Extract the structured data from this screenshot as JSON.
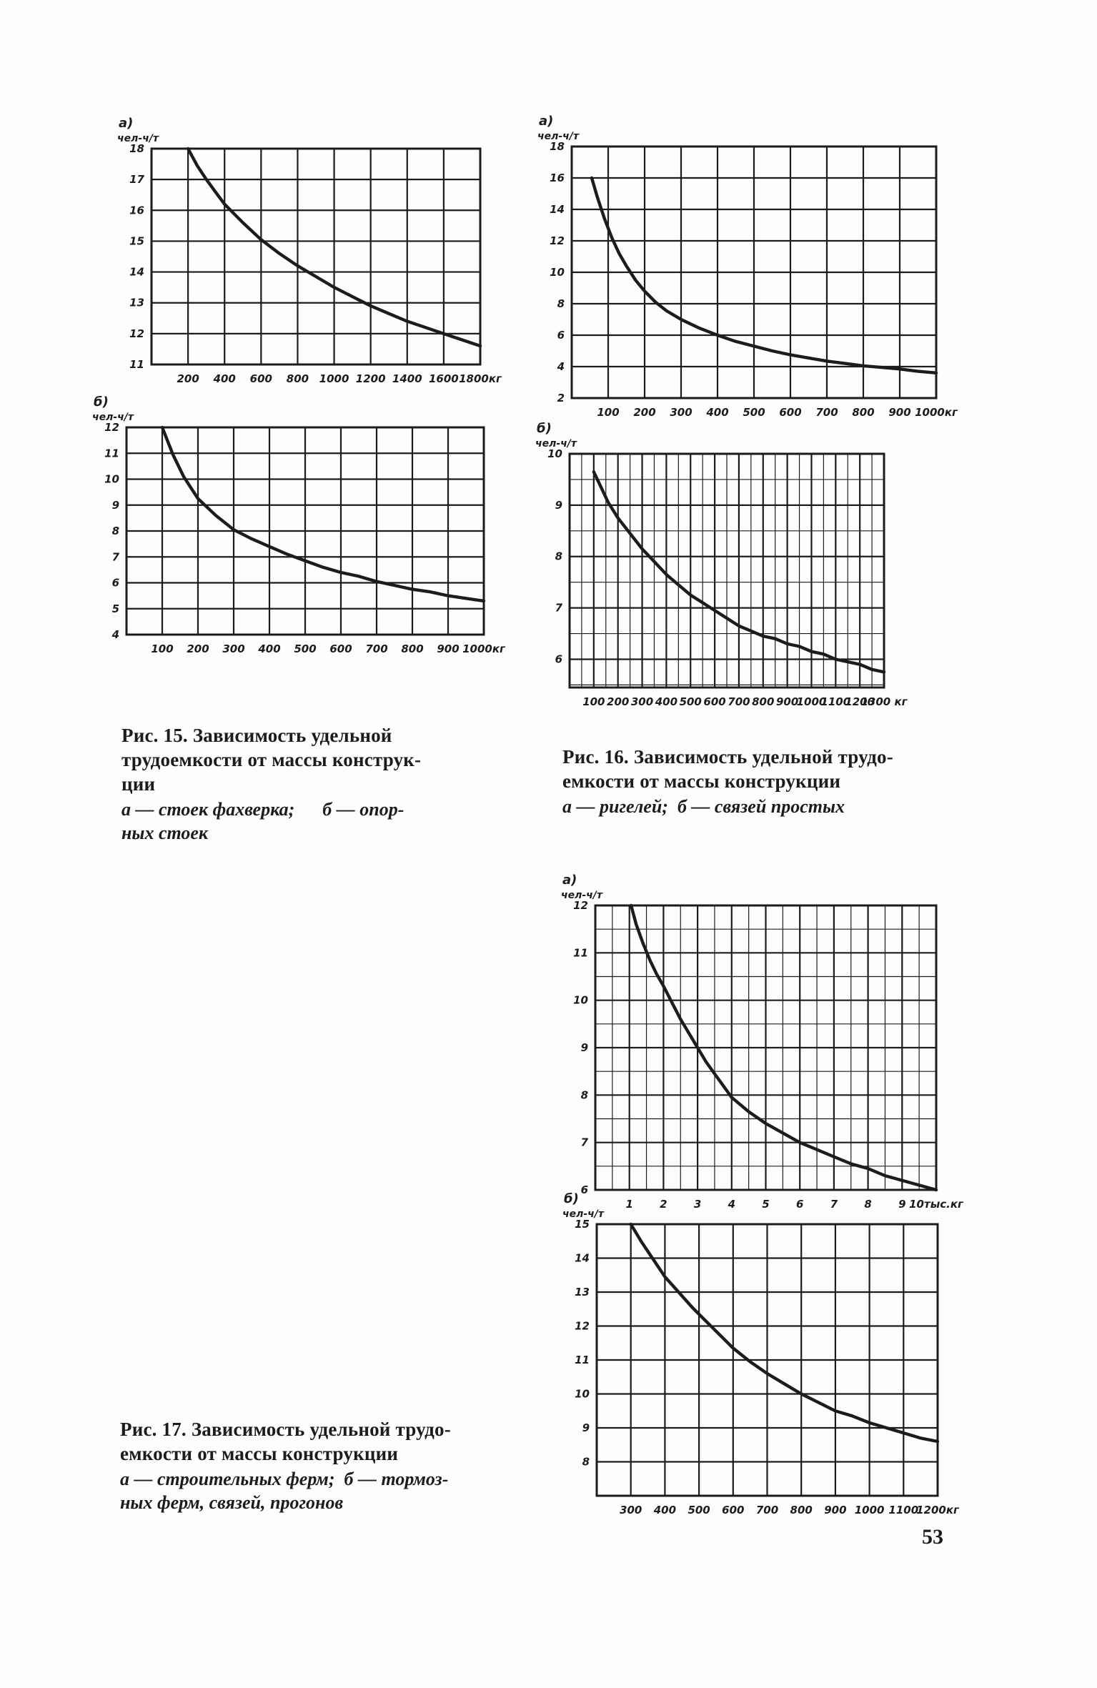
{
  "page": {
    "number": "53",
    "ink_color": "#1c1c1c",
    "background_color": "#fdfdfb"
  },
  "figures": [
    {
      "id": "fig15",
      "caption_title": "Рис. 15. Зависимость удельной\nтрудоемкости от массы конструк-\nции",
      "caption_sub": "а — стоек фахверка;      б — опор-\nных стоек"
    },
    {
      "id": "fig16",
      "caption_title": "Рис. 16. Зависимость удельной трудо-\nемкости от массы конструкции",
      "caption_sub": "а — ригелей;  б — связей простых"
    },
    {
      "id": "fig17",
      "caption_title": "Рис. 17. Зависимость удельной трудо-\nемкости от массы конструкции",
      "caption_sub": "а — строительных ферм;  б — тормоз-\nных ферм, связей, прогонов"
    }
  ],
  "chart_data": [
    {
      "id": "fig15a",
      "figure": "Рис. 15",
      "part": "а)",
      "type": "line",
      "ylabel": "чел-ч/т",
      "x_unit": "кг",
      "x_range": [
        0,
        1800
      ],
      "y_range": [
        11,
        18
      ],
      "x_minor_step": null,
      "y_minor_step": null,
      "x_ticks": [
        [
          200,
          "200"
        ],
        [
          400,
          "400"
        ],
        [
          600,
          "600"
        ],
        [
          800,
          "800"
        ],
        [
          1000,
          "1000"
        ],
        [
          1200,
          "1200"
        ],
        [
          1400,
          "1400"
        ],
        [
          1600,
          "1600"
        ],
        [
          1800,
          "1800кг"
        ]
      ],
      "y_ticks": [
        [
          11,
          "11"
        ],
        [
          12,
          "12"
        ],
        [
          13,
          "13"
        ],
        [
          14,
          "14"
        ],
        [
          15,
          "15"
        ],
        [
          16,
          "16"
        ],
        [
          17,
          "17"
        ],
        [
          18,
          "18"
        ]
      ],
      "curve": [
        [
          200,
          18
        ],
        [
          250,
          17.45
        ],
        [
          300,
          17.0
        ],
        [
          350,
          16.6
        ],
        [
          400,
          16.2
        ],
        [
          500,
          15.6
        ],
        [
          600,
          15.05
        ],
        [
          700,
          14.6
        ],
        [
          800,
          14.2
        ],
        [
          900,
          13.85
        ],
        [
          1000,
          13.5
        ],
        [
          1100,
          13.2
        ],
        [
          1200,
          12.9
        ],
        [
          1300,
          12.65
        ],
        [
          1400,
          12.4
        ],
        [
          1500,
          12.2
        ],
        [
          1600,
          12.0
        ],
        [
          1700,
          11.8
        ],
        [
          1800,
          11.6
        ]
      ]
    },
    {
      "id": "fig15b",
      "figure": "Рис. 15",
      "part": "б)",
      "type": "line",
      "ylabel": "чел-ч/т",
      "x_unit": "кг",
      "x_range": [
        0,
        1000
      ],
      "y_range": [
        4,
        12
      ],
      "x_minor_step": null,
      "y_minor_step": null,
      "x_ticks": [
        [
          100,
          "100"
        ],
        [
          200,
          "200"
        ],
        [
          300,
          "300"
        ],
        [
          400,
          "400"
        ],
        [
          500,
          "500"
        ],
        [
          600,
          "600"
        ],
        [
          700,
          "700"
        ],
        [
          800,
          "800"
        ],
        [
          900,
          "900"
        ],
        [
          1000,
          "1000кг"
        ]
      ],
      "y_ticks": [
        [
          4,
          "4"
        ],
        [
          5,
          "5"
        ],
        [
          6,
          "6"
        ],
        [
          7,
          "7"
        ],
        [
          8,
          "8"
        ],
        [
          9,
          "9"
        ],
        [
          10,
          "10"
        ],
        [
          11,
          "11"
        ],
        [
          12,
          "12"
        ]
      ],
      "curve": [
        [
          100,
          12
        ],
        [
          130,
          10.95
        ],
        [
          160,
          10.1
        ],
        [
          200,
          9.25
        ],
        [
          250,
          8.6
        ],
        [
          300,
          8.05
        ],
        [
          350,
          7.7
        ],
        [
          400,
          7.4
        ],
        [
          450,
          7.1
        ],
        [
          500,
          6.85
        ],
        [
          550,
          6.6
        ],
        [
          600,
          6.4
        ],
        [
          650,
          6.25
        ],
        [
          700,
          6.05
        ],
        [
          750,
          5.9
        ],
        [
          800,
          5.75
        ],
        [
          850,
          5.65
        ],
        [
          900,
          5.5
        ],
        [
          950,
          5.4
        ],
        [
          1000,
          5.3
        ]
      ]
    },
    {
      "id": "fig16a",
      "figure": "Рис. 16",
      "part": "а)",
      "type": "line",
      "ylabel": "чел-ч/т",
      "x_unit": "кг",
      "x_range": [
        0,
        1000
      ],
      "y_range": [
        2,
        18
      ],
      "x_minor_step": null,
      "y_minor_step": null,
      "x_ticks": [
        [
          100,
          "100"
        ],
        [
          200,
          "200"
        ],
        [
          300,
          "300"
        ],
        [
          400,
          "400"
        ],
        [
          500,
          "500"
        ],
        [
          600,
          "600"
        ],
        [
          700,
          "700"
        ],
        [
          800,
          "800"
        ],
        [
          900,
          "900"
        ],
        [
          1000,
          "1000кг"
        ]
      ],
      "y_ticks": [
        [
          2,
          "2"
        ],
        [
          4,
          "4"
        ],
        [
          6,
          "6"
        ],
        [
          8,
          "8"
        ],
        [
          10,
          "10"
        ],
        [
          12,
          "12"
        ],
        [
          14,
          "14"
        ],
        [
          16,
          "16"
        ],
        [
          18,
          "18"
        ]
      ],
      "curve": [
        [
          55,
          16
        ],
        [
          70,
          14.8
        ],
        [
          90,
          13.4
        ],
        [
          110,
          12.2
        ],
        [
          130,
          11.2
        ],
        [
          150,
          10.4
        ],
        [
          175,
          9.5
        ],
        [
          200,
          8.8
        ],
        [
          230,
          8.1
        ],
        [
          260,
          7.55
        ],
        [
          300,
          7.0
        ],
        [
          350,
          6.45
        ],
        [
          400,
          6.0
        ],
        [
          450,
          5.6
        ],
        [
          500,
          5.3
        ],
        [
          550,
          5.0
        ],
        [
          600,
          4.75
        ],
        [
          650,
          4.55
        ],
        [
          700,
          4.35
        ],
        [
          750,
          4.2
        ],
        [
          800,
          4.05
        ],
        [
          850,
          3.95
        ],
        [
          900,
          3.85
        ],
        [
          950,
          3.7
        ],
        [
          1000,
          3.6
        ]
      ]
    },
    {
      "id": "fig16b",
      "figure": "Рис. 16",
      "part": "б)",
      "type": "line",
      "ylabel": "чел-ч/т",
      "x_unit": "кг",
      "x_range": [
        0,
        1300
      ],
      "y_range": [
        5.45,
        10
      ],
      "x_minor_step": 50,
      "y_minor_step": 0.5,
      "x_ticks": [
        [
          100,
          "100"
        ],
        [
          200,
          "200"
        ],
        [
          300,
          "300"
        ],
        [
          400,
          "400"
        ],
        [
          500,
          "500"
        ],
        [
          600,
          "600"
        ],
        [
          700,
          "700"
        ],
        [
          800,
          "800"
        ],
        [
          900,
          "900"
        ],
        [
          1000,
          "1000"
        ],
        [
          1100,
          "1100"
        ],
        [
          1200,
          "1200"
        ],
        [
          1300,
          "1300 кг"
        ]
      ],
      "y_ticks": [
        [
          6,
          "6"
        ],
        [
          7,
          "7"
        ],
        [
          8,
          "8"
        ],
        [
          9,
          "9"
        ],
        [
          10,
          "10"
        ]
      ],
      "curve": [
        [
          100,
          9.65
        ],
        [
          130,
          9.35
        ],
        [
          160,
          9.05
        ],
        [
          200,
          8.75
        ],
        [
          250,
          8.45
        ],
        [
          300,
          8.15
        ],
        [
          350,
          7.9
        ],
        [
          400,
          7.65
        ],
        [
          450,
          7.45
        ],
        [
          500,
          7.25
        ],
        [
          550,
          7.1
        ],
        [
          600,
          6.95
        ],
        [
          650,
          6.8
        ],
        [
          700,
          6.65
        ],
        [
          750,
          6.55
        ],
        [
          800,
          6.45
        ],
        [
          850,
          6.4
        ],
        [
          900,
          6.3
        ],
        [
          950,
          6.25
        ],
        [
          1000,
          6.15
        ],
        [
          1050,
          6.1
        ],
        [
          1100,
          6.0
        ],
        [
          1150,
          5.95
        ],
        [
          1200,
          5.9
        ],
        [
          1250,
          5.8
        ],
        [
          1300,
          5.75
        ]
      ]
    },
    {
      "id": "fig17a",
      "figure": "Рис. 17",
      "part": "а)",
      "type": "line",
      "ylabel": "чел-ч/т",
      "x_unit": "тыс.кг",
      "x_range": [
        0,
        10
      ],
      "y_range": [
        6,
        12
      ],
      "x_minor_step": 0.5,
      "y_minor_step": 0.5,
      "x_ticks": [
        [
          1,
          "1"
        ],
        [
          2,
          "2"
        ],
        [
          3,
          "3"
        ],
        [
          4,
          "4"
        ],
        [
          5,
          "5"
        ],
        [
          6,
          "6"
        ],
        [
          7,
          "7"
        ],
        [
          8,
          "8"
        ],
        [
          9,
          "9"
        ],
        [
          10,
          "10тыс.кг"
        ]
      ],
      "y_ticks": [
        [
          6,
          "6"
        ],
        [
          7,
          "7"
        ],
        [
          8,
          "8"
        ],
        [
          9,
          "9"
        ],
        [
          10,
          "10"
        ],
        [
          11,
          "11"
        ],
        [
          12,
          "12"
        ]
      ],
      "curve": [
        [
          1.05,
          12
        ],
        [
          1.2,
          11.6
        ],
        [
          1.4,
          11.2
        ],
        [
          1.6,
          10.85
        ],
        [
          1.8,
          10.55
        ],
        [
          2,
          10.3
        ],
        [
          2.25,
          9.95
        ],
        [
          2.5,
          9.6
        ],
        [
          2.75,
          9.3
        ],
        [
          3,
          9.0
        ],
        [
          3.25,
          8.7
        ],
        [
          3.5,
          8.45
        ],
        [
          3.75,
          8.2
        ],
        [
          4,
          7.95
        ],
        [
          4.5,
          7.65
        ],
        [
          5,
          7.4
        ],
        [
          5.5,
          7.2
        ],
        [
          6,
          7.0
        ],
        [
          6.5,
          6.85
        ],
        [
          7,
          6.7
        ],
        [
          7.5,
          6.55
        ],
        [
          8,
          6.45
        ],
        [
          8.5,
          6.3
        ],
        [
          9,
          6.2
        ],
        [
          9.5,
          6.1
        ],
        [
          10,
          6.0
        ]
      ]
    },
    {
      "id": "fig17b",
      "figure": "Рис. 17",
      "part": "б)",
      "type": "line",
      "ylabel": "чел-ч/т",
      "x_unit": "кг",
      "x_range": [
        200,
        1200
      ],
      "y_range": [
        7,
        15
      ],
      "x_minor_step": null,
      "y_minor_step": null,
      "x_ticks": [
        [
          300,
          "300"
        ],
        [
          400,
          "400"
        ],
        [
          500,
          "500"
        ],
        [
          600,
          "600"
        ],
        [
          700,
          "700"
        ],
        [
          800,
          "800"
        ],
        [
          900,
          "900"
        ],
        [
          1000,
          "1000"
        ],
        [
          1100,
          "1100"
        ],
        [
          1200,
          "1200кг"
        ]
      ],
      "y_ticks": [
        [
          8,
          "8"
        ],
        [
          9,
          "9"
        ],
        [
          10,
          "10"
        ],
        [
          11,
          "11"
        ],
        [
          12,
          "12"
        ],
        [
          13,
          "13"
        ],
        [
          14,
          "14"
        ],
        [
          15,
          "15"
        ]
      ],
      "curve": [
        [
          300,
          15
        ],
        [
          330,
          14.5
        ],
        [
          360,
          14.05
        ],
        [
          400,
          13.45
        ],
        [
          440,
          13.0
        ],
        [
          480,
          12.55
        ],
        [
          520,
          12.15
        ],
        [
          560,
          11.75
        ],
        [
          600,
          11.35
        ],
        [
          650,
          10.95
        ],
        [
          700,
          10.6
        ],
        [
          750,
          10.3
        ],
        [
          800,
          10.0
        ],
        [
          850,
          9.75
        ],
        [
          900,
          9.5
        ],
        [
          950,
          9.35
        ],
        [
          1000,
          9.15
        ],
        [
          1050,
          9.0
        ],
        [
          1100,
          8.85
        ],
        [
          1150,
          8.7
        ],
        [
          1200,
          8.6
        ]
      ]
    }
  ]
}
